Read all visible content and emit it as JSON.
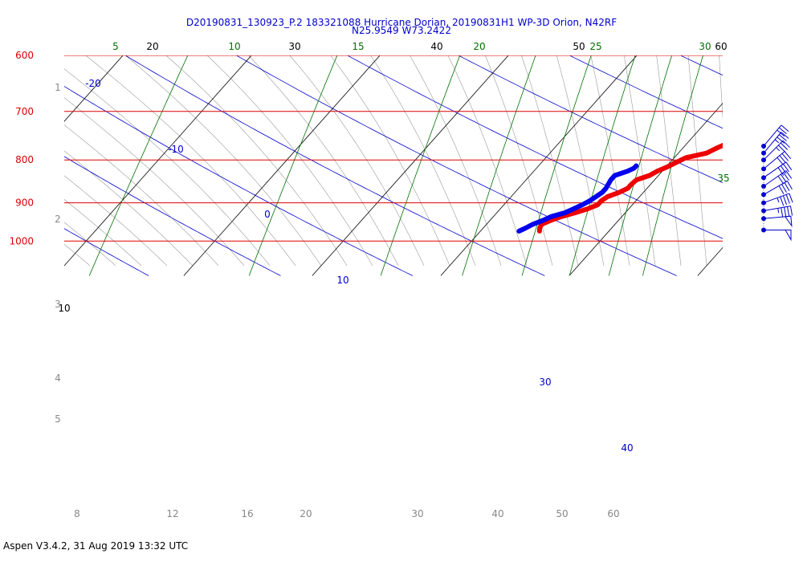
{
  "header": {
    "title_line1": "D20190831_130923_P.2 183321088 Hurricane Dorian, 20190831H1 WP-3D Orion, N42RF",
    "title_line2": "N25.9549 W73.2422"
  },
  "footer": {
    "text": "Aspen V3.4.2, 31 Aug 2019  13:32 UTC"
  },
  "colors": {
    "isobar": "#dd0000",
    "isotherm": "#000000",
    "mixing_ratio": "#007000",
    "dry_adiabat": "#0000cc",
    "moist_adiabat": "#999999",
    "temperature": "#ee0000",
    "dewpoint": "#0000ee",
    "wind": "#0000cc"
  },
  "chart_data": {
    "type": "line",
    "subtype": "skew-T log-P diagram",
    "pressure_levels": [
      {
        "p": 600,
        "label": "600"
      },
      {
        "p": 700,
        "label": "700"
      },
      {
        "p": 800,
        "label": "800"
      },
      {
        "p": 900,
        "label": "900"
      },
      {
        "p": 1000,
        "label": "1000"
      }
    ],
    "ylim": [
      1070,
      600
    ],
    "xlim": [
      -10,
      45
    ],
    "isotherm_labels": [
      {
        "t": 10,
        "label": "10"
      },
      {
        "t": 20,
        "label": "20"
      },
      {
        "t": 30,
        "label": "30"
      },
      {
        "t": 40,
        "label": "40"
      },
      {
        "t": 50,
        "label": "50"
      },
      {
        "t": 60,
        "label": "60"
      }
    ],
    "mixing_ratio_labels": [
      {
        "w": 5,
        "label": "5"
      },
      {
        "w": 10,
        "label": "10"
      },
      {
        "w": 15,
        "label": "15"
      },
      {
        "w": 20,
        "label": "20"
      },
      {
        "w": 25,
        "label": "25"
      },
      {
        "w": 30,
        "label": "30"
      },
      {
        "w": 35,
        "label": "35"
      }
    ],
    "dry_adiabat_labels": [
      {
        "t": -20,
        "label": "-20"
      },
      {
        "t": -10,
        "label": "-10"
      },
      {
        "t": 0,
        "label": "0"
      },
      {
        "t": 10,
        "label": "10"
      },
      {
        "t": 30,
        "label": "30"
      },
      {
        "t": 40,
        "label": "40"
      }
    ],
    "height_km_labels": [
      "1",
      "2",
      "3",
      "4",
      "5"
    ],
    "bottom_labels": [
      "8",
      "12",
      "16",
      "20",
      "30",
      "40",
      "50",
      "60"
    ],
    "temperature": {
      "name": "Temperature",
      "points": [
        [
          973,
          24.6
        ],
        [
          965,
          24.4
        ],
        [
          955,
          24.3
        ],
        [
          945,
          24.7
        ],
        [
          935,
          25.3
        ],
        [
          925,
          26.1
        ],
        [
          915,
          26.8
        ],
        [
          905,
          27.3
        ],
        [
          895,
          27.3
        ],
        [
          885,
          27.5
        ],
        [
          875,
          28.1
        ],
        [
          865,
          28.5
        ],
        [
          855,
          28.5
        ],
        [
          845,
          28.6
        ],
        [
          835,
          29.3
        ],
        [
          825,
          29.6
        ],
        [
          815,
          30.1
        ],
        [
          805,
          30.5
        ],
        [
          795,
          30.9
        ],
        [
          785,
          32.2
        ],
        [
          775,
          32.6
        ],
        [
          765,
          33.1
        ],
        [
          755,
          34.0
        ]
      ]
    },
    "dewpoint": {
      "name": "Dewpoint",
      "points": [
        [
          973,
          23.0
        ],
        [
          965,
          23.3
        ],
        [
          955,
          23.6
        ],
        [
          945,
          24.1
        ],
        [
          935,
          24.5
        ],
        [
          925,
          25.3
        ],
        [
          915,
          25.7
        ],
        [
          905,
          26.1
        ],
        [
          895,
          26.4
        ],
        [
          885,
          26.6
        ],
        [
          875,
          26.8
        ],
        [
          865,
          26.8
        ],
        [
          855,
          26.7
        ],
        [
          845,
          26.6
        ],
        [
          835,
          26.6
        ],
        [
          825,
          27.3
        ],
        [
          818,
          27.6
        ],
        [
          813,
          27.6
        ]
      ]
    },
    "wind_barbs": [
      {
        "p": 770,
        "dir": 40,
        "speed_kt": 30
      },
      {
        "p": 785,
        "dir": 40,
        "speed_kt": 35
      },
      {
        "p": 800,
        "dir": 45,
        "speed_kt": 35
      },
      {
        "p": 820,
        "dir": 50,
        "speed_kt": 40
      },
      {
        "p": 840,
        "dir": 55,
        "speed_kt": 40
      },
      {
        "p": 860,
        "dir": 55,
        "speed_kt": 40
      },
      {
        "p": 880,
        "dir": 60,
        "speed_kt": 40
      },
      {
        "p": 900,
        "dir": 70,
        "speed_kt": 45
      },
      {
        "p": 920,
        "dir": 80,
        "speed_kt": 45
      },
      {
        "p": 940,
        "dir": 85,
        "speed_kt": 50
      },
      {
        "p": 970,
        "dir": 90,
        "speed_kt": 50
      }
    ]
  }
}
